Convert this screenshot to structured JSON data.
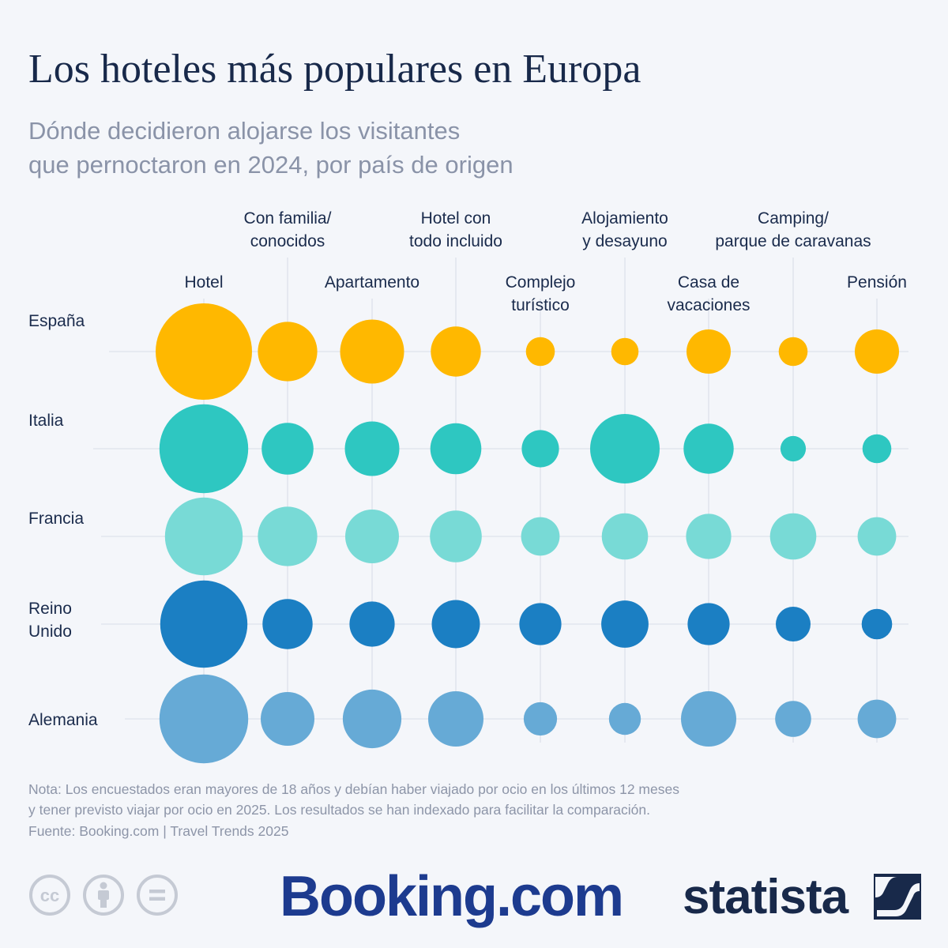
{
  "header": {
    "title": "Los hoteles más populares en Europa",
    "subtitle_lines": [
      "Dónde decidieron alojarse los visitantes",
      "que pernoctaron en 2024, por país de origen"
    ]
  },
  "chart_data": {
    "type": "bubble-grid",
    "title": "Los hoteles más populares en Europa",
    "subtitle": "Dónde decidieron alojarse los visitantes que pernoctaron en 2024, por país de origen",
    "value_note": "Bubble sizes are indexed values (estimated relative area, largest = 100)",
    "categories": [
      {
        "name": "Hotel",
        "label_lines": [
          "Hotel"
        ]
      },
      {
        "name": "Con familia/conocidos",
        "label_lines": [
          "Con familia/",
          "conocidos"
        ]
      },
      {
        "name": "Apartamento",
        "label_lines": [
          "Apartamento"
        ]
      },
      {
        "name": "Hotel con todo incluido",
        "label_lines": [
          "Hotel con",
          "todo incluido"
        ]
      },
      {
        "name": "Complejo turístico",
        "label_lines": [
          "Complejo",
          "turístico"
        ]
      },
      {
        "name": "Alojamiento y desayuno",
        "label_lines": [
          "Alojamiento",
          "y desayuno"
        ]
      },
      {
        "name": "Casa de vacaciones",
        "label_lines": [
          "Casa de",
          "vacaciones"
        ]
      },
      {
        "name": "Camping/parque de caravanas",
        "label_lines": [
          "Camping/",
          "parque de caravanas"
        ]
      },
      {
        "name": "Pensión",
        "label_lines": [
          "Pensión"
        ]
      }
    ],
    "series": [
      {
        "name": "España",
        "label_lines": [
          "España"
        ],
        "color": "#ffb800",
        "values": [
          100,
          38,
          44,
          27,
          9,
          8,
          21,
          9,
          21
        ]
      },
      {
        "name": "Italia",
        "label_lines": [
          "Italia"
        ],
        "color": "#2ec7c1",
        "values": [
          85,
          29,
          32,
          28,
          15,
          52,
          27,
          7,
          9
        ]
      },
      {
        "name": "Francia",
        "label_lines": [
          "Francia"
        ],
        "color": "#78dad6",
        "values": [
          65,
          38,
          31,
          29,
          16,
          23,
          22,
          23,
          16
        ]
      },
      {
        "name": "Reino Unido",
        "label_lines": [
          "Reino",
          "Unido"
        ],
        "color": "#1b7fc3",
        "values": [
          82,
          27,
          22,
          25,
          19,
          24,
          19,
          13,
          10
        ]
      },
      {
        "name": "Alemania",
        "label_lines": [
          "Alemania"
        ],
        "color": "#66aad6",
        "values": [
          85,
          31,
          37,
          33,
          12,
          11,
          33,
          14,
          16
        ]
      }
    ]
  },
  "footer": {
    "note_lines": [
      "Nota: Los encuestados eran mayores de 18 años y debían haber viajado por ocio en los últimos 12 meses",
      "y tener previsto viajar por ocio en 2025. Los resultados se han indexado para facilitar la comparación."
    ],
    "source": "Fuente: Booking.com | Travel Trends 2025",
    "license_icons": [
      "creative-commons-icon",
      "attribution-icon",
      "no-derivatives-icon"
    ],
    "booking_logo": "Booking.com",
    "statista_logo": "statista"
  },
  "colors": {
    "background": "#f4f6fa",
    "grid": "#dde2ec",
    "text": "#1a2b4c",
    "muted": "#8d95a8"
  }
}
